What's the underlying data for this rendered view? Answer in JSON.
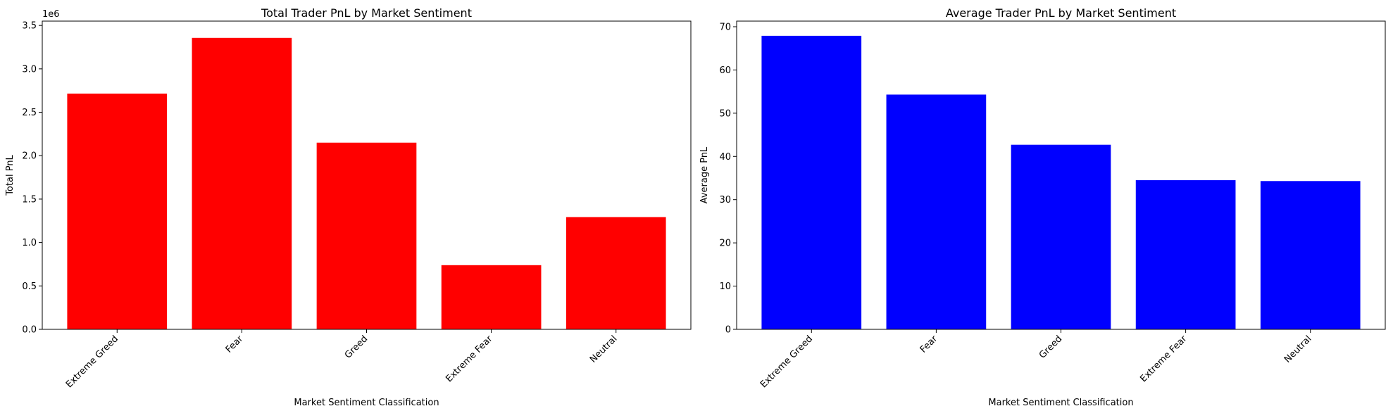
{
  "chart_data": [
    {
      "type": "bar",
      "title": "Total Trader PnL by Market Sentiment",
      "xlabel": "Market Sentiment Classification",
      "ylabel": "Total PnL",
      "offset_label": "1e6",
      "categories": [
        "Extreme Greed",
        "Fear",
        "Greed",
        "Extreme Fear",
        "Neutral"
      ],
      "values": [
        2715000,
        3357000,
        2150000,
        739000,
        1293000
      ],
      "ylim": [
        0,
        3550000
      ],
      "ytick_values": [
        0,
        500000,
        1000000,
        1500000,
        2000000,
        2500000,
        3000000,
        3500000
      ],
      "ytick_labels": [
        "0.0",
        "0.5",
        "1.0",
        "1.5",
        "2.0",
        "2.5",
        "3.0",
        "3.5"
      ],
      "bar_color": "#ff0000",
      "grid": false,
      "legend": false
    },
    {
      "type": "bar",
      "title": "Average Trader PnL by Market Sentiment",
      "xlabel": "Market Sentiment Classification",
      "ylabel": "Average PnL",
      "categories": [
        "Extreme Greed",
        "Fear",
        "Greed",
        "Extreme Fear",
        "Neutral"
      ],
      "values": [
        67.9,
        54.3,
        42.7,
        34.5,
        34.3
      ],
      "ylim": [
        0,
        71.3
      ],
      "ytick_values": [
        0,
        10,
        20,
        30,
        40,
        50,
        60,
        70
      ],
      "ytick_labels": [
        "0",
        "10",
        "20",
        "30",
        "40",
        "50",
        "60",
        "70"
      ],
      "bar_color": "#0000ff",
      "grid": false,
      "legend": false
    }
  ]
}
